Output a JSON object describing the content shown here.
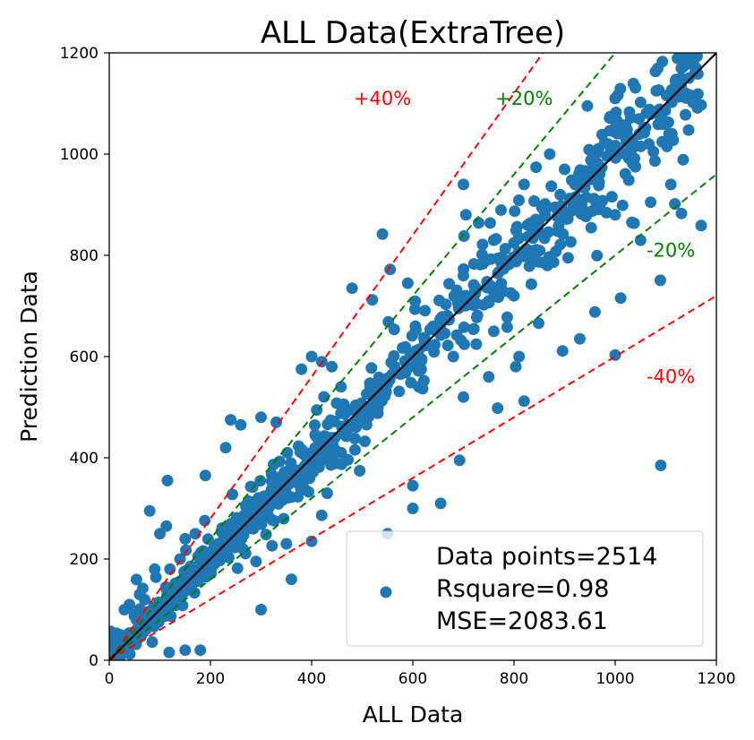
{
  "chart_data": {
    "type": "scatter",
    "title": "ALL Data(ExtraTree)",
    "xlabel": "ALL Data",
    "ylabel": "Prediction Data",
    "xlim": [
      0,
      1200
    ],
    "ylim": [
      0,
      1200
    ],
    "xticks": [
      0,
      200,
      400,
      600,
      800,
      1000,
      1200
    ],
    "yticks": [
      0,
      200,
      400,
      600,
      800,
      1000,
      1200
    ],
    "grid": false,
    "legend": {
      "placement": "bottom-right",
      "lines": [
        "Data points=2514",
        "Rsquare=0.98",
        "MSE=2083.61"
      ]
    },
    "colors": {
      "points": "#1f77b4",
      "identity": "#000000",
      "band20": "#008000",
      "band40": "#ff0000"
    },
    "reference_lines": [
      {
        "label": "+40%",
        "slope": 1.4,
        "color": "#ff0000",
        "style": "dashed",
        "label_at": [
          540,
          1110
        ]
      },
      {
        "label": "+20%",
        "slope": 1.2,
        "color": "#008000",
        "style": "dashed",
        "label_at": [
          820,
          1110
        ]
      },
      {
        "label": "-20%",
        "slope": 0.8,
        "color": "#008000",
        "style": "dashed",
        "label_at": [
          1110,
          810
        ]
      },
      {
        "label": "-40%",
        "slope": 0.6,
        "color": "#ff0000",
        "style": "dashed",
        "label_at": [
          1110,
          560
        ]
      },
      {
        "label": "",
        "slope": 1.0,
        "color": "#000000",
        "style": "solid"
      }
    ],
    "highlighted_points": [
      [
        1090,
        385
      ],
      [
        1000,
        603
      ],
      [
        930,
        635
      ],
      [
        960,
        688
      ],
      [
        820,
        512
      ],
      [
        600,
        300
      ],
      [
        655,
        310
      ],
      [
        600,
        345
      ],
      [
        550,
        250
      ],
      [
        700,
        520
      ],
      [
        700,
        940
      ],
      [
        705,
        880
      ],
      [
        540,
        842
      ],
      [
        555,
        772
      ],
      [
        480,
        735
      ],
      [
        520,
        712
      ],
      [
        590,
        745
      ],
      [
        1000,
        1110
      ],
      [
        945,
        1095
      ],
      [
        1040,
        975
      ],
      [
        1000,
        880
      ],
      [
        1050,
        830
      ],
      [
        1110,
        940
      ],
      [
        1070,
        905
      ],
      [
        1130,
        1150
      ],
      [
        1160,
        1170
      ],
      [
        1140,
        1120
      ],
      [
        820,
        940
      ],
      [
        900,
        970
      ],
      [
        760,
        830
      ],
      [
        700,
        760
      ],
      [
        750,
        710
      ],
      [
        800,
        720
      ],
      [
        760,
        650
      ],
      [
        810,
        600
      ],
      [
        680,
        600
      ],
      [
        750,
        560
      ],
      [
        400,
        600
      ],
      [
        420,
        590
      ],
      [
        380,
        575
      ],
      [
        440,
        580
      ],
      [
        330,
        470
      ],
      [
        300,
        480
      ],
      [
        240,
        475
      ],
      [
        260,
        465
      ],
      [
        230,
        420
      ],
      [
        190,
        365
      ],
      [
        115,
        355
      ],
      [
        80,
        295
      ],
      [
        100,
        250
      ],
      [
        150,
        240
      ],
      [
        170,
        250
      ],
      [
        300,
        100
      ],
      [
        150,
        20
      ],
      [
        180,
        20
      ],
      [
        360,
        160
      ],
      [
        400,
        235
      ],
      [
        290,
        195
      ],
      [
        350,
        230
      ],
      [
        50,
        90
      ],
      [
        40,
        110
      ],
      [
        30,
        100
      ],
      [
        20,
        50
      ],
      [
        10,
        30
      ],
      [
        5,
        10
      ],
      [
        60,
        130
      ],
      [
        70,
        120
      ],
      [
        90,
        180
      ],
      [
        120,
        180
      ],
      [
        140,
        200
      ]
    ],
    "scatter_note": "2514 points, mostly concentrated along y = x with spread within the +/-20% bands"
  }
}
